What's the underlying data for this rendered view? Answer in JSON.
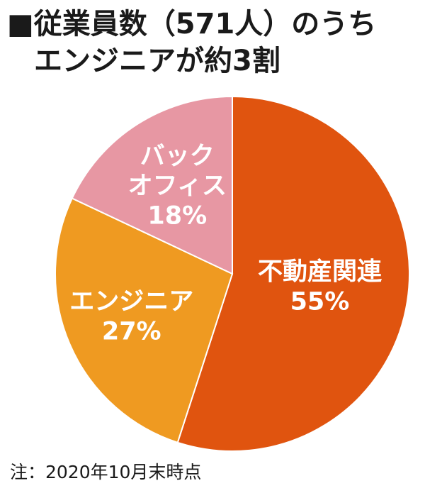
{
  "title": {
    "marker": "■",
    "line1": "従業員数（571人）のうち",
    "line2": "エンジニアが約3割"
  },
  "chart_data": {
    "type": "pie",
    "title": "従業員数（571人）のうちエンジニアが約3割",
    "slices": [
      {
        "label": "不動産関連",
        "value": 55,
        "value_label": "55%",
        "color": "#e0540f"
      },
      {
        "label": "エンジニア",
        "value": 27,
        "value_label": "27%",
        "color": "#ef9a21"
      },
      {
        "label": "バックオフィス",
        "value": 18,
        "value_label": "18%",
        "color": "#e797a3",
        "label_lines": [
          "バック",
          "オフィス"
        ]
      }
    ],
    "start": "12 o'clock",
    "direction": "clockwise"
  },
  "note": "注：2020年10月末時点"
}
